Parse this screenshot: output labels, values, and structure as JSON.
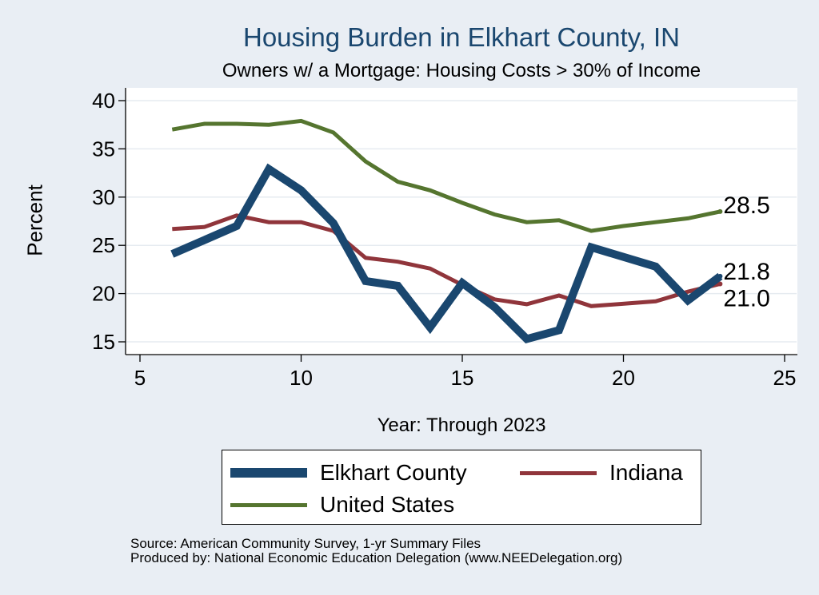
{
  "chart_data": {
    "type": "line",
    "title": "Housing Burden in Elkhart County, IN",
    "subtitle": "Owners w/ a Mortgage: Housing Costs > 30% of Income",
    "xlabel": "Year: Through 2023",
    "ylabel": "Percent",
    "xlim": [
      5,
      25
    ],
    "ylim": [
      14,
      41
    ],
    "x_ticks": [
      5,
      10,
      15,
      20,
      25
    ],
    "y_ticks": [
      15,
      20,
      25,
      30,
      35,
      40
    ],
    "grid": true,
    "legend_position": "bottom",
    "series": [
      {
        "name": "Elkhart County",
        "color": "#1a476f",
        "x": [
          6,
          8,
          9,
          10,
          11,
          12,
          13,
          14,
          15,
          16,
          17,
          18,
          19,
          21,
          22,
          23
        ],
        "values": [
          24.1,
          27.0,
          32.9,
          30.7,
          27.3,
          21.3,
          20.8,
          16.5,
          21.1,
          18.6,
          15.3,
          16.2,
          24.8,
          22.8,
          19.3,
          21.8
        ],
        "end_label": "21.8"
      },
      {
        "name": "Indiana",
        "color": "#90353b",
        "x": [
          6,
          7,
          8,
          9,
          10,
          11,
          12,
          13,
          14,
          15,
          16,
          17,
          18,
          19,
          21,
          22,
          23
        ],
        "values": [
          26.7,
          26.9,
          28.1,
          27.4,
          27.4,
          26.5,
          23.7,
          23.3,
          22.6,
          20.9,
          19.4,
          18.9,
          19.8,
          18.7,
          19.2,
          20.2,
          21.0
        ],
        "end_label": "21.0"
      },
      {
        "name": "United States",
        "color": "#55752f",
        "x": [
          6,
          7,
          8,
          9,
          10,
          11,
          12,
          13,
          14,
          15,
          16,
          17,
          18,
          19,
          20,
          21,
          22,
          23
        ],
        "values": [
          37.0,
          37.6,
          37.6,
          37.5,
          37.9,
          36.7,
          33.7,
          31.6,
          30.7,
          29.4,
          28.2,
          27.4,
          27.6,
          26.5,
          27.0,
          27.4,
          27.8,
          28.5
        ],
        "end_label": "28.5"
      }
    ]
  },
  "notes": {
    "source": "Source: American Community Survey, 1-yr Summary Files",
    "produced_by": "Produced by: National Economic Education Delegation (www.NEEDelegation.org)"
  }
}
